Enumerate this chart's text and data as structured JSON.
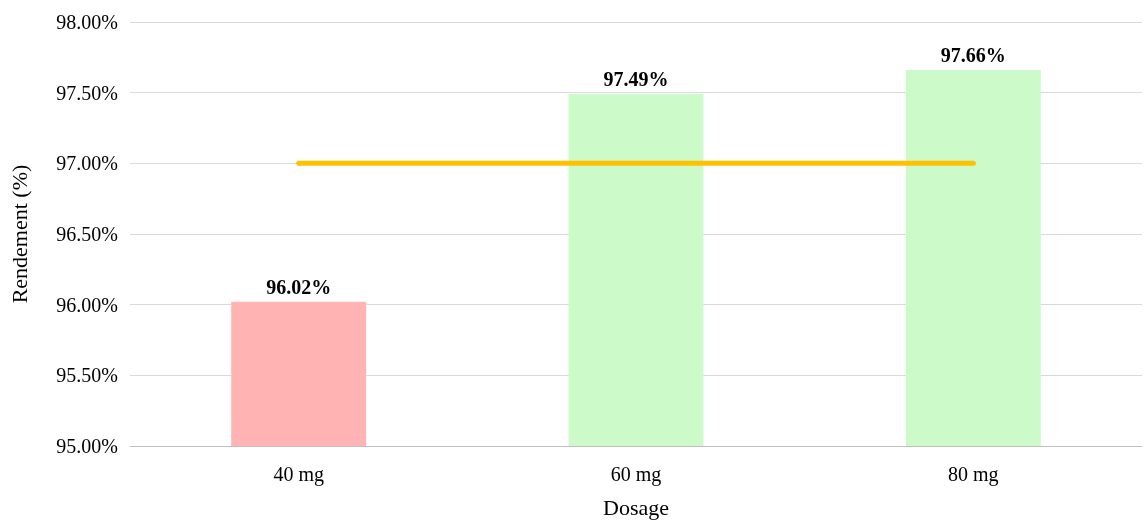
{
  "chart_data": {
    "type": "bar",
    "xlabel": "Dosage",
    "ylabel": "Rendement (%)",
    "categories": [
      "40 mg",
      "60 mg",
      "80 mg"
    ],
    "series": [
      {
        "colors": [
          "#ffb3b3",
          "#ccfac8",
          "#ccfac8"
        ],
        "values": [
          96.02,
          97.49,
          97.66
        ],
        "value_labels": [
          "96.02%",
          "97.49%",
          "97.66%"
        ]
      },
      {
        "type": "line",
        "color": "#ffc000",
        "values": [
          97,
          97,
          97
        ],
        "marker": "none",
        "line_style": "solid"
      }
    ],
    "ylim": [
      95,
      98
    ],
    "yticks": [
      {
        "value": 95,
        "label": "95.00%"
      },
      {
        "value": 95.5,
        "label": "95.50%"
      },
      {
        "value": 96,
        "label": "96.00%"
      },
      {
        "value": 96.5,
        "label": "96.50%"
      },
      {
        "value": 97,
        "label": "97.00%"
      },
      {
        "value": 97.5,
        "label": "97.50%"
      },
      {
        "value": 98,
        "label": "98.00%"
      }
    ],
    "grid": "y"
  }
}
